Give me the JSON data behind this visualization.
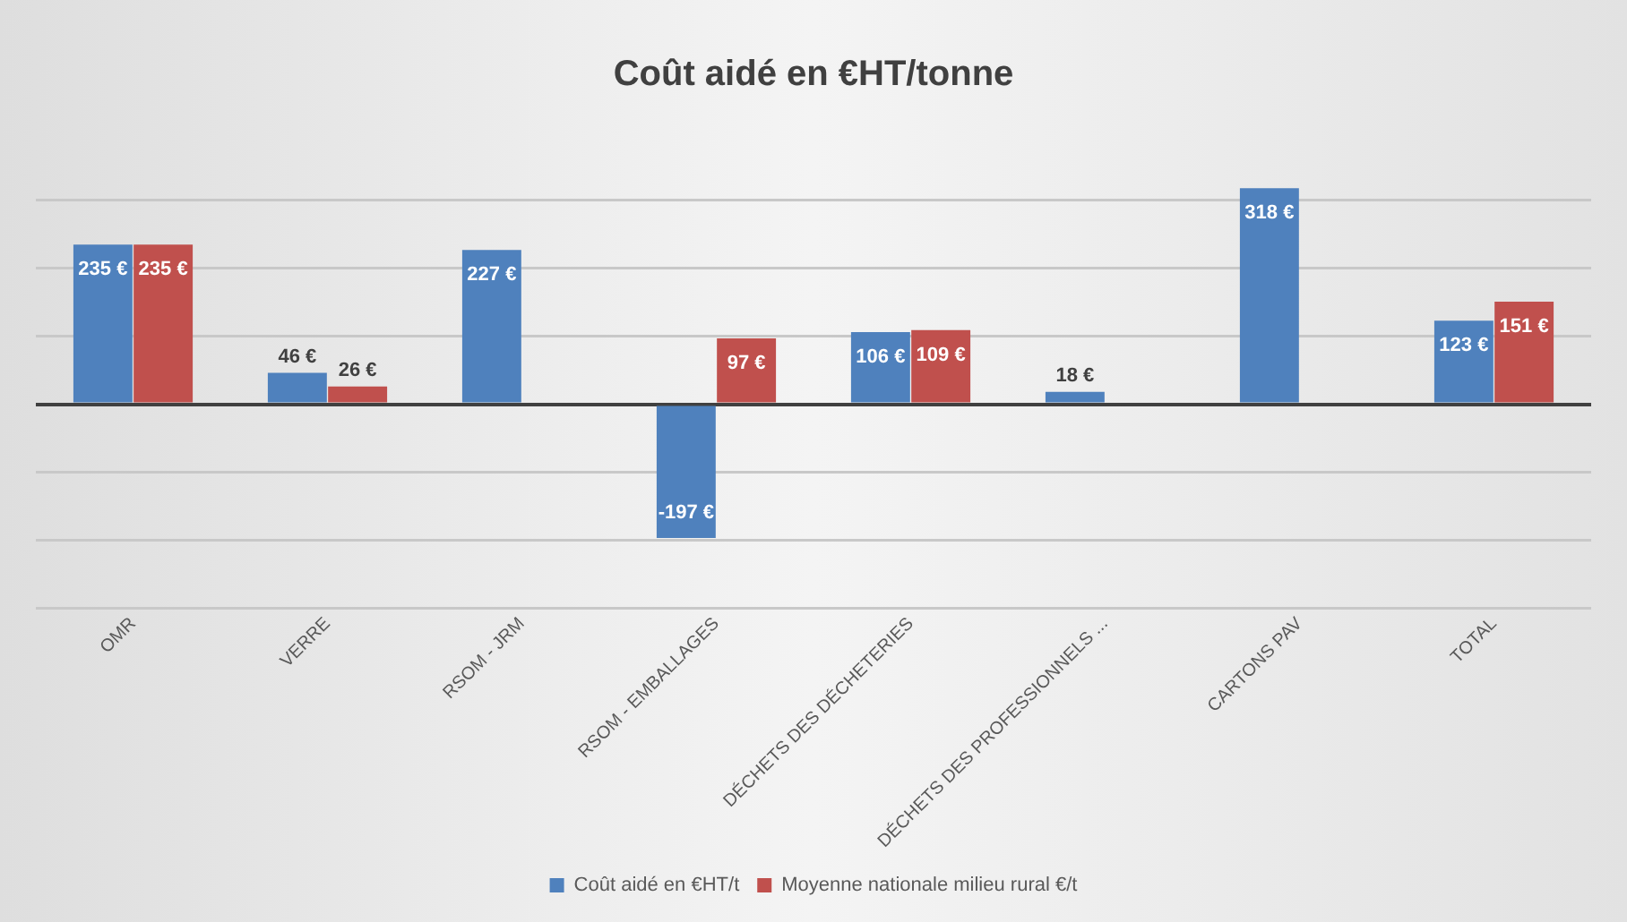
{
  "chart_data": {
    "type": "bar",
    "title": "Coût aidé en €HT/tonne",
    "categories": [
      "OMR",
      "VERRE",
      "RSOM - JRM",
      "RSOM - EMBALLAGES",
      "DÉCHETS DES DÉCHETERIES",
      "DÉCHETS DES PROFESSIONNELS ...",
      "CARTONS PAV",
      "TOTAL"
    ],
    "series": [
      {
        "name": "Coût aidé en €HT/t",
        "color": "#4f81bd",
        "values": [
          235,
          46,
          227,
          -197,
          106,
          18,
          318,
          123
        ],
        "value_labels": [
          "235 €",
          "46 €",
          "227 €",
          "-197 €",
          "106 €",
          "18 €",
          "318 €",
          "123 €"
        ]
      },
      {
        "name": "Moyenne nationale milieu rural €/t",
        "color": "#c0504d",
        "values": [
          235,
          26,
          null,
          97,
          109,
          null,
          null,
          151
        ],
        "value_labels": [
          "235 €",
          "26 €",
          null,
          "97 €",
          "109 €",
          null,
          null,
          "151 €"
        ]
      }
    ],
    "yticks": [
      {
        "value": -300,
        "label": null
      },
      {
        "value": -200,
        "label": null
      },
      {
        "value": -100,
        "label": null
      },
      {
        "value": 0,
        "label": null
      },
      {
        "value": 100,
        "label": null
      },
      {
        "value": 200,
        "label": null
      },
      {
        "value": 300,
        "label": null
      }
    ],
    "tick_labels": "x",
    "grid": "y",
    "legend": "bottom"
  }
}
